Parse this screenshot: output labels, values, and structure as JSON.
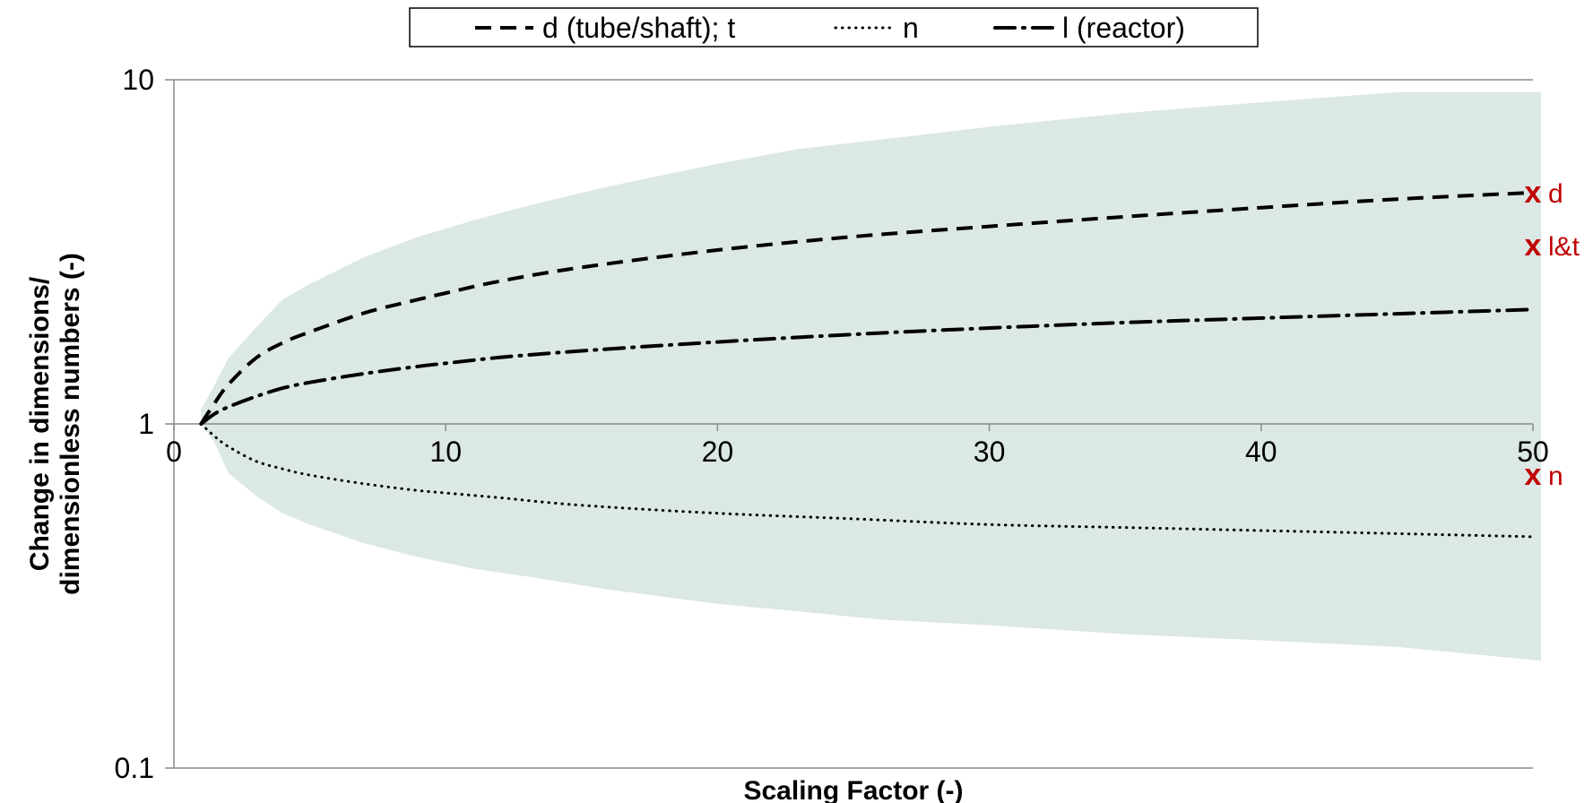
{
  "chart_data": {
    "type": "line",
    "title": "",
    "xlabel": "Scaling Factor (-)",
    "ylabel": "Change in dimensions/ dimensionless numbers (-)",
    "ylabel_lines": [
      "Change in dimensions/",
      "dimensionless numbers (-)"
    ],
    "xlim": [
      0,
      50
    ],
    "ylim": [
      0.1,
      10
    ],
    "yscale": "log",
    "x_ticks": [
      0,
      10,
      20,
      30,
      40,
      50
    ],
    "x_tick_labels": [
      "0",
      "10",
      "20",
      "30",
      "40",
      "50"
    ],
    "y_ticks": [
      0.1,
      1,
      10
    ],
    "y_tick_labels": [
      "0.1",
      "1",
      "10"
    ],
    "grid": false,
    "legend_position": "top",
    "band": {
      "color": "#dce8e5",
      "x": [
        1,
        1.5,
        2,
        3,
        4,
        5,
        7,
        9,
        11,
        13,
        16,
        20,
        23,
        26,
        30,
        35,
        40,
        45,
        50.3
      ],
      "upper": [
        1.1,
        1.3,
        1.55,
        1.9,
        2.3,
        2.55,
        3.05,
        3.5,
        3.9,
        4.3,
        4.9,
        5.7,
        6.3,
        6.7,
        7.3,
        8.0,
        8.6,
        9.2,
        9.2
      ],
      "lower": [
        1.0,
        0.88,
        0.72,
        0.62,
        0.55,
        0.51,
        0.45,
        0.41,
        0.38,
        0.36,
        0.33,
        0.3,
        0.285,
        0.27,
        0.26,
        0.245,
        0.235,
        0.225,
        0.205
      ]
    },
    "series": [
      {
        "name": "d (tube/shaft); t",
        "dash": "dashed",
        "color": "#000000",
        "x": [
          1,
          1.5,
          2,
          3,
          4,
          5,
          7,
          9,
          10,
          12,
          15,
          20,
          25,
          30,
          35,
          40,
          45,
          50
        ],
        "y": [
          1.0,
          1.15,
          1.3,
          1.55,
          1.72,
          1.85,
          2.1,
          2.3,
          2.4,
          2.6,
          2.85,
          3.2,
          3.5,
          3.75,
          4.0,
          4.25,
          4.5,
          4.7
        ]
      },
      {
        "name": "n",
        "dash": "dotted",
        "color": "#000000",
        "x": [
          1,
          1.5,
          2,
          3,
          4,
          5,
          7,
          9,
          10,
          12,
          15,
          20,
          25,
          30,
          35,
          40,
          45,
          50
        ],
        "y": [
          1.0,
          0.92,
          0.86,
          0.78,
          0.74,
          0.71,
          0.67,
          0.64,
          0.63,
          0.61,
          0.58,
          0.55,
          0.53,
          0.51,
          0.5,
          0.49,
          0.48,
          0.47
        ]
      },
      {
        "name": "l (reactor)",
        "dash": "dashdot",
        "color": "#000000",
        "x": [
          1,
          1.5,
          2,
          3,
          4,
          5,
          7,
          9,
          10,
          12,
          15,
          20,
          25,
          30,
          35,
          40,
          45,
          50
        ],
        "y": [
          1.0,
          1.07,
          1.12,
          1.2,
          1.27,
          1.32,
          1.4,
          1.47,
          1.5,
          1.56,
          1.63,
          1.73,
          1.82,
          1.9,
          1.97,
          2.03,
          2.09,
          2.15
        ]
      }
    ],
    "markers": {
      "color": "#c00000",
      "symbol": "x",
      "points": [
        {
          "label": "d",
          "x": 50,
          "y": 4.7
        },
        {
          "label": "l&t",
          "x": 50,
          "y": 3.3
        },
        {
          "label": "n",
          "x": 50,
          "y": 0.71
        }
      ]
    }
  }
}
